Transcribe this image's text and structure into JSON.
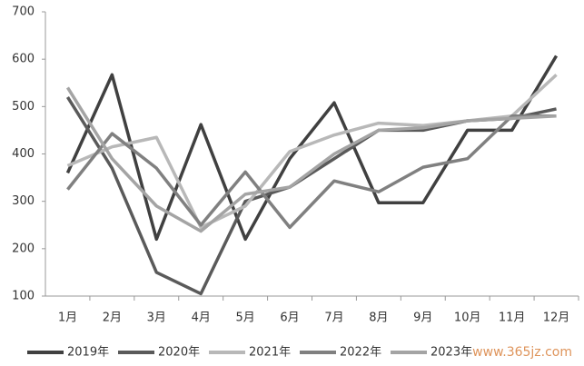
{
  "chart_data": {
    "type": "line",
    "categories": [
      "1月",
      "2月",
      "3月",
      "4月",
      "5月",
      "6月",
      "7月",
      "8月",
      "9月",
      "10月",
      "11月",
      "12月"
    ],
    "series": [
      {
        "name": "2019年",
        "color": "#404040",
        "values": [
          360,
          567,
          220,
          462,
          220,
          390,
          508,
          297,
          297,
          450,
          450,
          607
        ]
      },
      {
        "name": "2020年",
        "color": "#5a5a5a",
        "values": [
          520,
          370,
          150,
          105,
          300,
          330,
          390,
          450,
          450,
          470,
          475,
          495
        ]
      },
      {
        "name": "2021年",
        "color": "#b8b8b8",
        "values": [
          375,
          415,
          435,
          245,
          290,
          405,
          440,
          465,
          460,
          470,
          480,
          567
        ]
      },
      {
        "name": "2022年",
        "color": "#808080",
        "values": [
          325,
          443,
          370,
          250,
          362,
          245,
          343,
          320,
          372,
          390,
          480,
          480
        ]
      },
      {
        "name": "2023年",
        "color": "#a4a4a4",
        "values": [
          540,
          390,
          290,
          237,
          315,
          330,
          400,
          450,
          455,
          470,
          475,
          480
        ]
      }
    ],
    "ylim": [
      100,
      700
    ],
    "yticks": [
      100,
      200,
      300,
      400,
      500,
      600,
      700
    ],
    "grid": false,
    "legend": "bottom",
    "watermark": "www.365jz.com"
  }
}
